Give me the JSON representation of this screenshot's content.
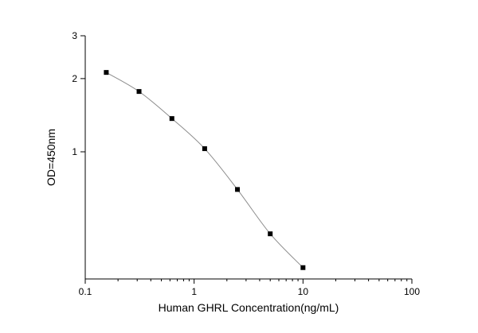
{
  "chart_data": {
    "type": "scatter",
    "title": "",
    "xlabel": "Human GHRL Concentration(ng/mL)",
    "ylabel": "OD=450nm",
    "x_scale": "log",
    "y_scale": "log",
    "xlim": [
      0.1,
      100
    ],
    "ylim": [
      0.3,
      3
    ],
    "x_ticks": [
      0.1,
      1,
      10,
      100
    ],
    "x_tick_labels": [
      "0.1",
      "1",
      "10",
      "100"
    ],
    "y_ticks": [
      1,
      2,
      3
    ],
    "y_tick_labels": [
      "1",
      "2",
      "3"
    ],
    "grid": false,
    "legend": "none",
    "colors": {
      "axis": "#000000",
      "marker": "#000000",
      "curve": "#8c8c8c"
    },
    "series": [
      {
        "x": [
          0.156,
          0.312,
          0.625,
          1.25,
          2.5,
          5,
          10
        ],
        "y": [
          2.12,
          1.77,
          1.37,
          1.03,
          0.7,
          0.46,
          0.334
        ]
      }
    ]
  }
}
